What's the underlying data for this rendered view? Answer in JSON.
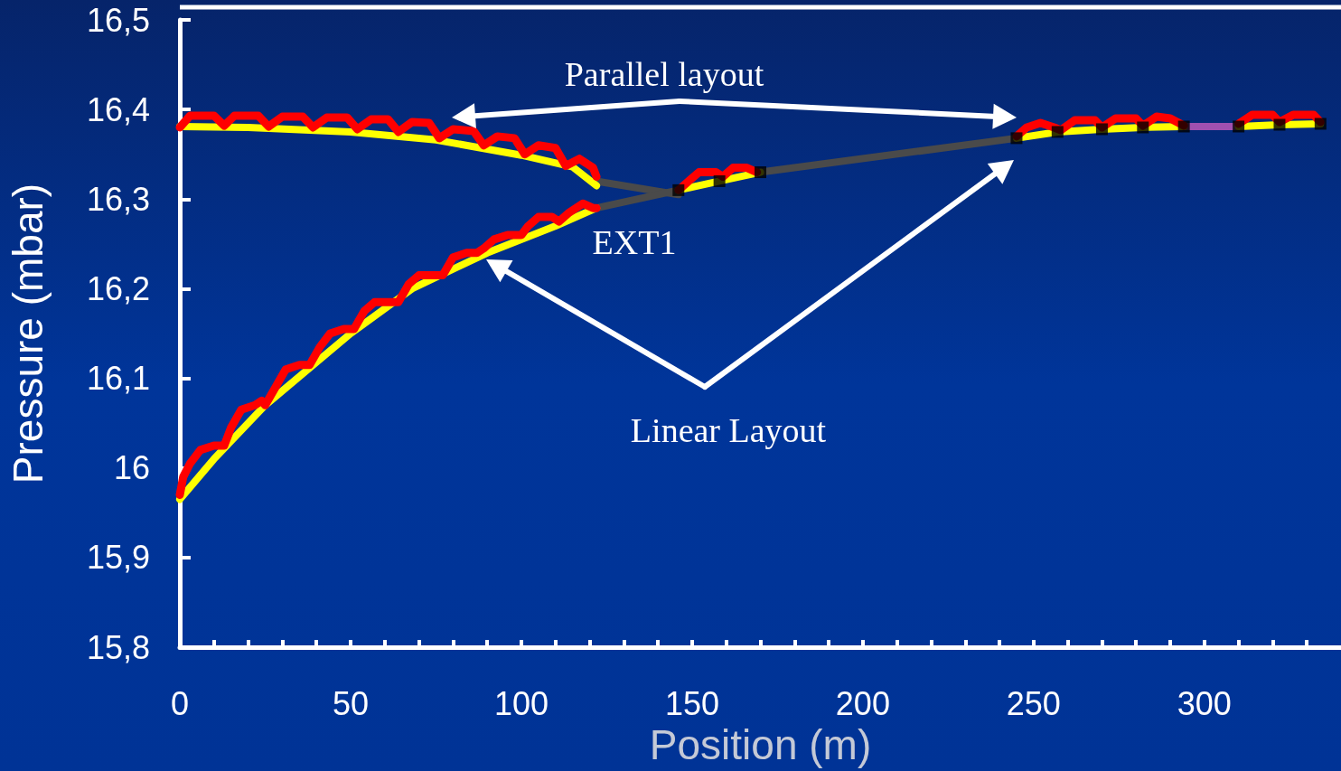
{
  "chart_data": {
    "type": "line",
    "xlabel": "Position (m)",
    "ylabel": "Pressure (mbar)",
    "xlim": [
      0,
      340
    ],
    "ylim": [
      15.8,
      16.5
    ],
    "xticks": [
      0,
      {
        "value": 10,
        "label": null
      },
      {
        "value": 20,
        "label": null
      },
      {
        "value": 30,
        "label": null
      },
      {
        "value": 40,
        "label": null
      },
      50,
      {
        "value": 60,
        "label": null
      },
      {
        "value": 70,
        "label": null
      },
      {
        "value": 80,
        "label": null
      },
      {
        "value": 90,
        "label": null
      },
      100,
      {
        "value": 110,
        "label": null
      },
      {
        "value": 120,
        "label": null
      },
      {
        "value": 130,
        "label": null
      },
      {
        "value": 140,
        "label": null
      },
      150,
      {
        "value": 160,
        "label": null
      },
      {
        "value": 170,
        "label": null
      },
      {
        "value": 180,
        "label": null
      },
      {
        "value": 190,
        "label": null
      },
      200,
      {
        "value": 210,
        "label": null
      },
      {
        "value": 220,
        "label": null
      },
      {
        "value": 230,
        "label": null
      },
      {
        "value": 240,
        "label": null
      },
      250,
      {
        "value": 260,
        "label": null
      },
      {
        "value": 270,
        "label": null
      },
      {
        "value": 280,
        "label": null
      },
      {
        "value": 290,
        "label": null
      },
      300,
      {
        "value": 310,
        "label": null
      },
      {
        "value": 320,
        "label": null
      },
      {
        "value": 330,
        "label": null
      }
    ],
    "yticks": [
      {
        "value": 15.8,
        "label": "15,8"
      },
      {
        "value": 15.9,
        "label": "15,9"
      },
      16,
      {
        "value": 16.1,
        "label": "16,1"
      },
      {
        "value": 16.2,
        "label": "16,2"
      },
      {
        "value": 16.3,
        "label": "16,3"
      },
      {
        "value": 16.4,
        "label": "16,4"
      },
      {
        "value": 16.5,
        "label": "16,5"
      }
    ],
    "grid": false,
    "marker": "none",
    "line_style": "solid",
    "annotations": [
      "Parallel layout",
      "EXT1",
      "Linear Layout"
    ],
    "series": [
      {
        "color": "#4a4a4a",
        "x": [
          122,
          146
        ],
        "values": [
          16.32,
          16.305
        ]
      },
      {
        "color": "#4a4a4a",
        "x": [
          122,
          146
        ],
        "values": [
          16.29,
          16.31
        ]
      },
      {
        "color": "#4a4a4a",
        "x": [
          170,
          245
        ],
        "values": [
          16.33,
          16.368
        ]
      },
      {
        "color": "#a050b0",
        "x": [
          294,
          310
        ],
        "values": [
          16.381,
          16.381
        ]
      },
      {
        "color": "#ffff00",
        "x": [
          0,
          20,
          50,
          75,
          100,
          115,
          122
        ],
        "values": [
          16.381,
          16.38,
          16.375,
          16.366,
          16.349,
          16.336,
          16.315
        ]
      },
      {
        "color": "#ffff00",
        "x": [
          0,
          10,
          25,
          50,
          68,
          90,
          110,
          122
        ],
        "values": [
          15.965,
          16.01,
          16.07,
          16.15,
          16.2,
          16.24,
          16.27,
          16.29
        ]
      },
      {
        "color": "#ffff00",
        "x": [
          146,
          158,
          170
        ],
        "values": [
          16.31,
          16.32,
          16.33
        ]
      },
      {
        "color": "#ffff00",
        "x": [
          245,
          257,
          270,
          282,
          294
        ],
        "values": [
          16.368,
          16.375,
          16.378,
          16.38,
          16.381
        ]
      },
      {
        "color": "#ffff00",
        "x": [
          310,
          322,
          334
        ],
        "values": [
          16.381,
          16.383,
          16.384
        ]
      },
      {
        "color": "#ff0000",
        "x": [
          0,
          3,
          10,
          13,
          16,
          23,
          26,
          30,
          36,
          39,
          43,
          49,
          52,
          56,
          61,
          64,
          68,
          73,
          76,
          80,
          86,
          89,
          93,
          98,
          101,
          105,
          110,
          113,
          117,
          121,
          122
        ],
        "values": [
          16.38,
          16.393,
          16.393,
          16.382,
          16.393,
          16.393,
          16.381,
          16.392,
          16.392,
          16.38,
          16.391,
          16.391,
          16.378,
          16.389,
          16.389,
          16.375,
          16.386,
          16.385,
          16.368,
          16.378,
          16.376,
          16.36,
          16.37,
          16.368,
          16.35,
          16.36,
          16.357,
          16.337,
          16.345,
          16.335,
          16.325
        ]
      },
      {
        "color": "#ff0000",
        "x": [
          0,
          1,
          3,
          6,
          10,
          13,
          15,
          18,
          22,
          24,
          25,
          28,
          31,
          35,
          38,
          41,
          44,
          48,
          51,
          54,
          57,
          61,
          64,
          67,
          70,
          74,
          77,
          80,
          84,
          87,
          89,
          92,
          96,
          100,
          102,
          105,
          109,
          111,
          114,
          118,
          121,
          122
        ],
        "values": [
          15.97,
          15.99,
          16.005,
          16.02,
          16.025,
          16.025,
          16.045,
          16.065,
          16.07,
          16.075,
          16.07,
          16.09,
          16.11,
          16.115,
          16.115,
          16.135,
          16.15,
          16.155,
          16.155,
          16.175,
          16.185,
          16.185,
          16.185,
          16.205,
          16.215,
          16.215,
          16.215,
          16.235,
          16.24,
          16.24,
          16.245,
          16.255,
          16.26,
          16.26,
          16.27,
          16.28,
          16.28,
          16.275,
          16.285,
          16.295,
          16.29,
          16.29
        ]
      },
      {
        "color": "#ff0000",
        "x": [
          146,
          149,
          152,
          157,
          159,
          162,
          166,
          169
        ],
        "values": [
          16.31,
          16.32,
          16.33,
          16.33,
          16.325,
          16.335,
          16.335,
          16.33
        ]
      },
      {
        "color": "#ff0000",
        "x": [
          245,
          248,
          252,
          256,
          258,
          262,
          268,
          270,
          274,
          280,
          282,
          286,
          290,
          294
        ],
        "values": [
          16.37,
          16.38,
          16.385,
          16.38,
          16.377,
          16.388,
          16.388,
          16.38,
          16.39,
          16.39,
          16.382,
          16.392,
          16.39,
          16.382
        ]
      },
      {
        "color": "#ff0000",
        "x": [
          310,
          314,
          320,
          322,
          326,
          332,
          334
        ],
        "values": [
          16.384,
          16.394,
          16.394,
          16.386,
          16.394,
          16.394,
          16.386
        ]
      },
      {
        "type": "scatter",
        "marker": "square",
        "color": "#000000",
        "x": [
          146,
          158,
          170,
          245,
          257,
          270,
          282,
          294,
          310,
          322,
          334
        ],
        "values": [
          16.31,
          16.32,
          16.33,
          16.368,
          16.375,
          16.378,
          16.38,
          16.381,
          16.381,
          16.383,
          16.384
        ]
      }
    ]
  }
}
